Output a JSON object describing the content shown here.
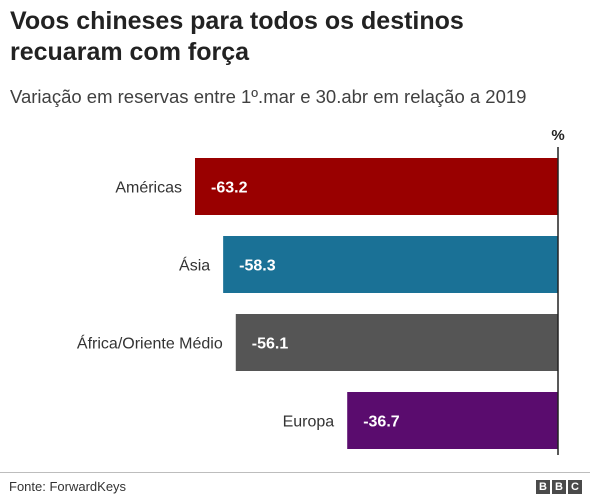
{
  "chart_data": {
    "type": "bar",
    "orientation": "horizontal",
    "title": "Voos chineses para todos os destinos recuaram com força",
    "subtitle": "Variação em reservas entre 1º.mar e 30.abr em relação a 2019",
    "unit_label": "%",
    "categories": [
      "Américas",
      "Ásia",
      "África/Oriente Médio",
      "Europa"
    ],
    "values": [
      -63.2,
      -58.3,
      -56.1,
      -36.7
    ],
    "value_labels": [
      "-63.2",
      "-58.3",
      "-56.1",
      "-36.7"
    ],
    "colors": [
      "#990000",
      "#1a7196",
      "#555555",
      "#5a0c6e"
    ],
    "xlim": [
      -63.2,
      0
    ],
    "grid": false,
    "legend": "none"
  },
  "footer": {
    "source": "Fonte: ForwardKeys",
    "logo": [
      "B",
      "B",
      "C"
    ]
  }
}
